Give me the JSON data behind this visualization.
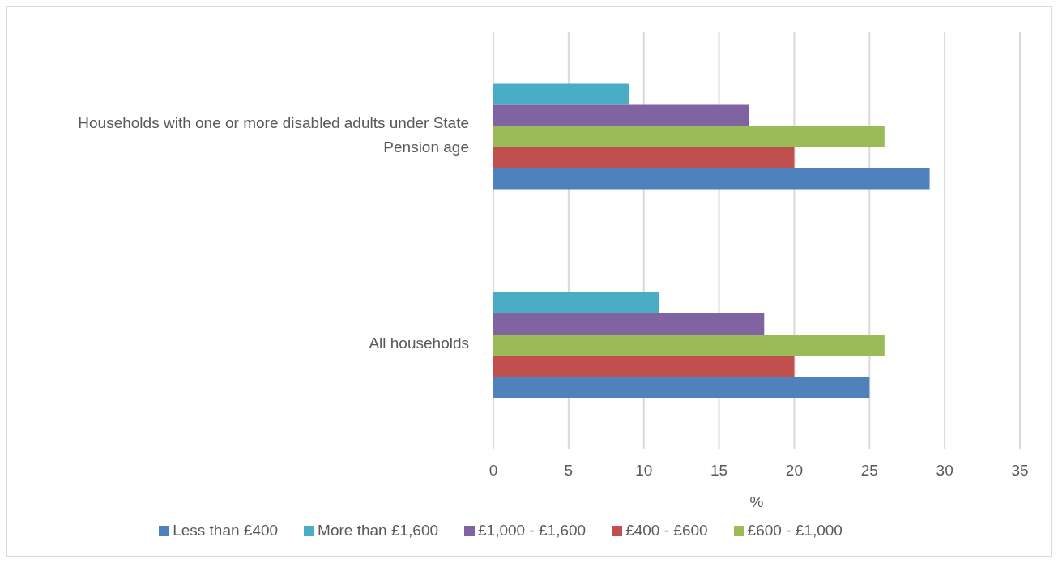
{
  "chart_data": {
    "type": "bar",
    "orientation": "horizontal",
    "xlabel": "%",
    "categories": [
      "Households with one or more disabled adults under State Pension age",
      "All households"
    ],
    "series": [
      {
        "name": "More than £1,600",
        "color": "#4bacc6",
        "values": [
          9,
          11
        ]
      },
      {
        "name": "£1,000 - £1,600",
        "color": "#8064a2",
        "values": [
          17,
          18
        ]
      },
      {
        "name": "£600 - £1,000",
        "color": "#9bbb59",
        "values": [
          26,
          26
        ]
      },
      {
        "name": "£400 - £600",
        "color": "#c0504d",
        "values": [
          20,
          20
        ]
      },
      {
        "name": "Less than £400",
        "color": "#4f81bd",
        "values": [
          29,
          25
        ]
      }
    ],
    "xlim": [
      0,
      35
    ],
    "xticks": [
      0,
      5,
      10,
      15,
      20,
      25,
      30,
      35
    ],
    "grid": "x",
    "legend": "bottom"
  }
}
